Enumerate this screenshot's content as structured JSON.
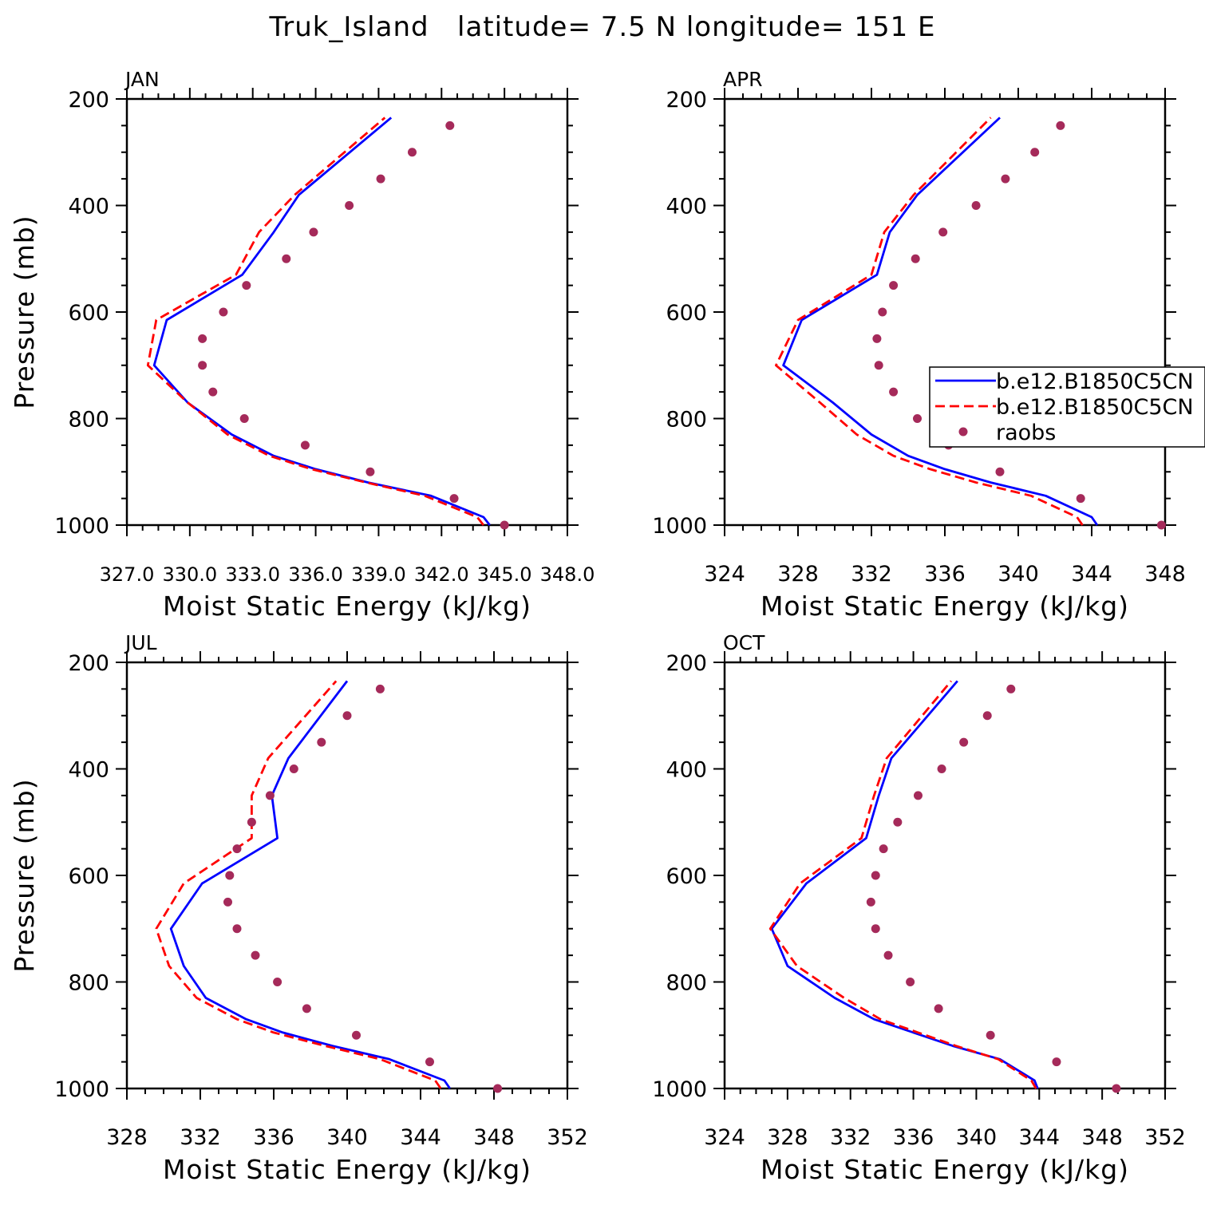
{
  "title": "Truk_Island   latitude= 7.5 N longitude= 151 E",
  "legend": {
    "items": [
      {
        "label": "b.e12.B1850C5CN",
        "kind": "solid-line",
        "color": "#0000ff"
      },
      {
        "label": "b.e12.B1850C5CN",
        "kind": "dashed-line",
        "color": "#ff0000"
      },
      {
        "label": "raobs",
        "kind": "marker",
        "color": "#a52a5a"
      }
    ]
  },
  "colors": {
    "model_solid": "#0000ff",
    "model_dashed": "#ff0000",
    "raobs": "#a52a5a"
  },
  "chart_data": [
    {
      "type": "line",
      "panel": "JAN",
      "xlabel": "Moist Static Energy (kJ/kg)",
      "ylabel": "Pressure (mb)",
      "xlim": [
        327.0,
        348.0
      ],
      "ylim": [
        1000,
        200
      ],
      "xticks": [
        "327.0",
        "330.0",
        "333.0",
        "336.0",
        "339.0",
        "342.0",
        "345.0",
        "348.0"
      ],
      "xtick_values": [
        327,
        330,
        333,
        336,
        339,
        342,
        345,
        348
      ],
      "yticks": [
        "200",
        "400",
        "600",
        "800",
        "1000"
      ],
      "series": [
        {
          "style": "solid",
          "points": [
            [
              344.3,
              1000
            ],
            [
              344.0,
              985
            ],
            [
              341.5,
              945
            ],
            [
              338.5,
              920
            ],
            [
              336.0,
              895
            ],
            [
              334.0,
              870
            ],
            [
              332.0,
              830
            ],
            [
              329.9,
              770
            ],
            [
              328.3,
              700
            ],
            [
              328.9,
              615
            ],
            [
              332.5,
              530
            ],
            [
              334.0,
              450
            ],
            [
              335.2,
              380
            ],
            [
              339.6,
              235
            ]
          ]
        },
        {
          "style": "dashed",
          "points": [
            [
              344.0,
              1000
            ],
            [
              343.7,
              985
            ],
            [
              341.2,
              945
            ],
            [
              338.4,
              920
            ],
            [
              335.8,
              895
            ],
            [
              333.8,
              870
            ],
            [
              331.8,
              830
            ],
            [
              329.9,
              770
            ],
            [
              328.0,
              700
            ],
            [
              328.4,
              615
            ],
            [
              332.2,
              530
            ],
            [
              333.3,
              450
            ],
            [
              335.0,
              380
            ],
            [
              339.3,
              235
            ]
          ]
        },
        {
          "style": "markers",
          "points": [
            [
              345.0,
              1000
            ],
            [
              342.6,
              950
            ],
            [
              338.6,
              900
            ],
            [
              335.5,
              850
            ],
            [
              332.6,
              800
            ],
            [
              331.1,
              750
            ],
            [
              330.6,
              700
            ],
            [
              330.6,
              650
            ],
            [
              331.6,
              600
            ],
            [
              332.7,
              550
            ],
            [
              334.6,
              500
            ],
            [
              335.9,
              450
            ],
            [
              337.6,
              400
            ],
            [
              339.1,
              350
            ],
            [
              340.6,
              300
            ],
            [
              342.4,
              250
            ]
          ]
        }
      ]
    },
    {
      "type": "line",
      "panel": "APR",
      "xlabel": "Moist Static Energy (kJ/kg)",
      "ylabel": "",
      "xlim": [
        324,
        348
      ],
      "ylim": [
        1000,
        200
      ],
      "xticks": [
        "324",
        "328",
        "332",
        "336",
        "340",
        "344",
        "348"
      ],
      "xtick_values": [
        324,
        328,
        332,
        336,
        340,
        344,
        348
      ],
      "yticks": [
        "200",
        "400",
        "600",
        "800",
        "1000"
      ],
      "series": [
        {
          "style": "solid",
          "points": [
            [
              344.3,
              1000
            ],
            [
              344.0,
              985
            ],
            [
              341.5,
              945
            ],
            [
              338.5,
              920
            ],
            [
              336.0,
              895
            ],
            [
              334.0,
              870
            ],
            [
              332.0,
              830
            ],
            [
              329.9,
              770
            ],
            [
              327.2,
              700
            ],
            [
              328.2,
              615
            ],
            [
              332.3,
              530
            ],
            [
              333.0,
              450
            ],
            [
              334.5,
              380
            ],
            [
              339.0,
              235
            ]
          ]
        },
        {
          "style": "dashed",
          "points": [
            [
              343.5,
              1000
            ],
            [
              343.2,
              985
            ],
            [
              340.7,
              945
            ],
            [
              337.7,
              920
            ],
            [
              335.2,
              895
            ],
            [
              333.2,
              870
            ],
            [
              331.2,
              830
            ],
            [
              329.2,
              770
            ],
            [
              326.8,
              700
            ],
            [
              328.0,
              615
            ],
            [
              332.0,
              530
            ],
            [
              332.7,
              450
            ],
            [
              334.3,
              380
            ],
            [
              338.5,
              235
            ]
          ]
        },
        {
          "style": "markers",
          "points": [
            [
              347.8,
              1000
            ],
            [
              343.4,
              950
            ],
            [
              339.0,
              900
            ],
            [
              336.2,
              850
            ],
            [
              334.5,
              800
            ],
            [
              333.2,
              750
            ],
            [
              332.4,
              700
            ],
            [
              332.3,
              650
            ],
            [
              332.6,
              600
            ],
            [
              333.2,
              550
            ],
            [
              334.4,
              500
            ],
            [
              335.9,
              450
            ],
            [
              337.7,
              400
            ],
            [
              339.3,
              350
            ],
            [
              340.9,
              300
            ],
            [
              342.3,
              250
            ]
          ]
        }
      ]
    },
    {
      "type": "line",
      "panel": "JUL",
      "xlabel": "Moist Static Energy (kJ/kg)",
      "ylabel": "Pressure (mb)",
      "xlim": [
        328,
        352
      ],
      "ylim": [
        1000,
        200
      ],
      "xticks": [
        "328",
        "332",
        "336",
        "340",
        "344",
        "348",
        "352"
      ],
      "xtick_values": [
        328,
        332,
        336,
        340,
        344,
        348,
        352
      ],
      "yticks": [
        "200",
        "400",
        "600",
        "800",
        "1000"
      ],
      "series": [
        {
          "style": "solid",
          "points": [
            [
              345.6,
              1000
            ],
            [
              345.3,
              985
            ],
            [
              342.3,
              945
            ],
            [
              339.2,
              920
            ],
            [
              336.5,
              895
            ],
            [
              334.5,
              870
            ],
            [
              332.3,
              830
            ],
            [
              331.1,
              770
            ],
            [
              330.4,
              700
            ],
            [
              332.1,
              615
            ],
            [
              336.2,
              530
            ],
            [
              335.9,
              450
            ],
            [
              336.8,
              380
            ],
            [
              340.0,
              235
            ]
          ]
        },
        {
          "style": "dashed",
          "points": [
            [
              345.1,
              1000
            ],
            [
              344.8,
              985
            ],
            [
              341.8,
              945
            ],
            [
              338.8,
              920
            ],
            [
              336.0,
              895
            ],
            [
              334.0,
              870
            ],
            [
              331.8,
              830
            ],
            [
              330.3,
              770
            ],
            [
              329.6,
              700
            ],
            [
              331.1,
              615
            ],
            [
              334.8,
              530
            ],
            [
              334.8,
              450
            ],
            [
              335.7,
              380
            ],
            [
              339.4,
              235
            ]
          ]
        },
        {
          "style": "markers",
          "points": [
            [
              348.2,
              1000
            ],
            [
              344.5,
              950
            ],
            [
              340.5,
              900
            ],
            [
              337.8,
              850
            ],
            [
              336.2,
              800
            ],
            [
              335.0,
              750
            ],
            [
              334.0,
              700
            ],
            [
              333.5,
              650
            ],
            [
              333.6,
              600
            ],
            [
              334.0,
              550
            ],
            [
              334.8,
              500
            ],
            [
              335.8,
              450
            ],
            [
              337.1,
              400
            ],
            [
              338.6,
              350
            ],
            [
              340.0,
              300
            ],
            [
              341.8,
              250
            ]
          ]
        }
      ]
    },
    {
      "type": "line",
      "panel": "OCT",
      "xlabel": "Moist Static Energy (kJ/kg)",
      "ylabel": "",
      "xlim": [
        324,
        352
      ],
      "ylim": [
        1000,
        200
      ],
      "xticks": [
        "324",
        "328",
        "332",
        "336",
        "340",
        "344",
        "348",
        "352"
      ],
      "xtick_values": [
        324,
        328,
        332,
        336,
        340,
        344,
        348,
        352
      ],
      "yticks": [
        "200",
        "400",
        "600",
        "800",
        "1000"
      ],
      "series": [
        {
          "style": "solid",
          "points": [
            [
              343.9,
              1000
            ],
            [
              343.7,
              985
            ],
            [
              341.5,
              945
            ],
            [
              338.5,
              920
            ],
            [
              336.0,
              895
            ],
            [
              333.5,
              870
            ],
            [
              331.0,
              830
            ],
            [
              328.0,
              770
            ],
            [
              327.0,
              700
            ],
            [
              329.2,
              615
            ],
            [
              333.0,
              530
            ],
            [
              333.8,
              450
            ],
            [
              334.6,
              380
            ],
            [
              338.8,
              235
            ]
          ]
        },
        {
          "style": "dashed",
          "points": [
            [
              343.8,
              1000
            ],
            [
              343.5,
              985
            ],
            [
              341.4,
              945
            ],
            [
              338.7,
              920
            ],
            [
              336.3,
              895
            ],
            [
              333.9,
              870
            ],
            [
              331.6,
              830
            ],
            [
              328.6,
              770
            ],
            [
              326.9,
              700
            ],
            [
              328.8,
              615
            ],
            [
              332.7,
              530
            ],
            [
              333.5,
              450
            ],
            [
              334.3,
              380
            ],
            [
              338.4,
              235
            ]
          ]
        },
        {
          "style": "markers",
          "points": [
            [
              348.9,
              1000
            ],
            [
              345.1,
              950
            ],
            [
              340.9,
              900
            ],
            [
              337.6,
              850
            ],
            [
              335.8,
              800
            ],
            [
              334.4,
              750
            ],
            [
              333.6,
              700
            ],
            [
              333.3,
              650
            ],
            [
              333.6,
              600
            ],
            [
              334.1,
              550
            ],
            [
              335.0,
              500
            ],
            [
              336.3,
              450
            ],
            [
              337.8,
              400
            ],
            [
              339.2,
              350
            ],
            [
              340.7,
              300
            ],
            [
              342.2,
              250
            ]
          ]
        }
      ]
    }
  ]
}
